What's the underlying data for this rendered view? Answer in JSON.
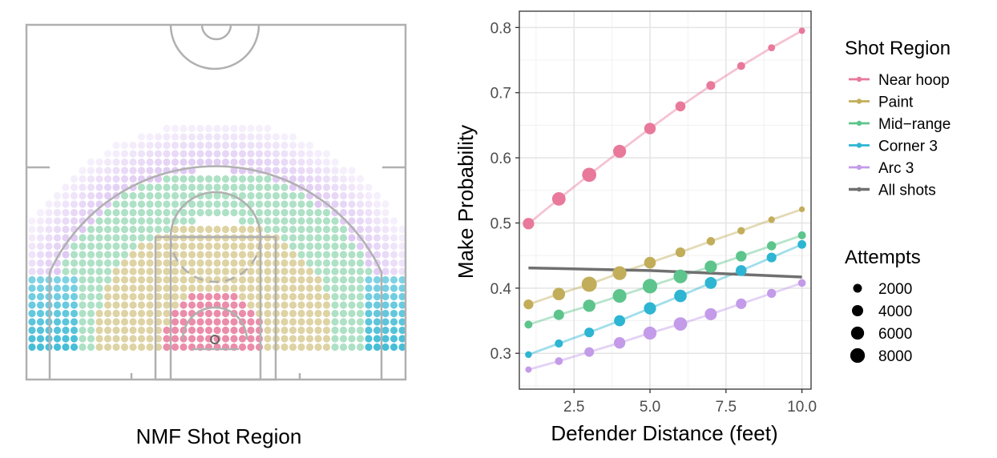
{
  "court_panel": {
    "title": "NMF Shot Region"
  },
  "colors": {
    "near_hoop": "#e8799b",
    "paint": "#c2ae5a",
    "mid_range": "#5dc48c",
    "corner_3": "#2db5d2",
    "arc_3": "#c39be8",
    "all_shots": "#707070",
    "court_lines": "#b0b0b0"
  },
  "chart_data": {
    "type": "line",
    "title": "",
    "xlabel": "Defender Distance (feet)",
    "ylabel": "Make Probability",
    "xlim": [
      0.7,
      10.3
    ],
    "ylim": [
      0.245,
      0.825
    ],
    "xticks": [
      2.5,
      5.0,
      7.5,
      10.0
    ],
    "xtick_labels": [
      "2.5",
      "5.0",
      "7.5",
      "10.0"
    ],
    "yticks": [
      0.3,
      0.4,
      0.5,
      0.6,
      0.7,
      0.8
    ],
    "ytick_labels": [
      "0.3",
      "0.4",
      "0.5",
      "0.6",
      "0.7",
      "0.8"
    ],
    "grid": true,
    "x": [
      1,
      2,
      3,
      4,
      5,
      6,
      7,
      8,
      9,
      10
    ],
    "series": [
      {
        "name": "Near hoop",
        "color_key": "near_hoop",
        "values": [
          0.499,
          0.537,
          0.574,
          0.61,
          0.645,
          0.679,
          0.711,
          0.741,
          0.769,
          0.795
        ],
        "attempts": [
          4200,
          6500,
          7400,
          6000,
          4300,
          3000,
          2100,
          1500,
          1000,
          700
        ]
      },
      {
        "name": "Paint",
        "color_key": "paint",
        "values": [
          0.375,
          0.391,
          0.406,
          0.423,
          0.439,
          0.455,
          0.472,
          0.488,
          0.505,
          0.521
        ],
        "attempts": [
          2800,
          5300,
          8800,
          6900,
          4500,
          2800,
          1800,
          1200,
          800,
          500
        ]
      },
      {
        "name": "Mid-range",
        "color_key": "mid_range",
        "values": [
          0.344,
          0.359,
          0.373,
          0.388,
          0.403,
          0.418,
          0.433,
          0.449,
          0.465,
          0.481
        ],
        "attempts": [
          1500,
          3300,
          5200,
          6800,
          7900,
          6800,
          5100,
          3500,
          2300,
          1500
        ]
      },
      {
        "name": "Corner 3",
        "color_key": "corner_3",
        "values": [
          0.298,
          0.315,
          0.332,
          0.35,
          0.369,
          0.388,
          0.408,
          0.427,
          0.447,
          0.467
        ],
        "attempts": [
          900,
          1600,
          2700,
          3900,
          5000,
          5400,
          4700,
          3700,
          2700,
          1900
        ]
      },
      {
        "name": "Arc 3",
        "color_key": "arc_3",
        "values": [
          0.275,
          0.288,
          0.302,
          0.316,
          0.331,
          0.345,
          0.36,
          0.376,
          0.392,
          0.408
        ],
        "attempts": [
          700,
          1400,
          2600,
          4300,
          6000,
          6400,
          4900,
          3400,
          2200,
          1400
        ]
      },
      {
        "name": "All shots",
        "color_key": "all_shots",
        "values": [
          0.431,
          0.43,
          0.429,
          0.428,
          0.427,
          0.425,
          0.423,
          0.421,
          0.419,
          0.417
        ],
        "line_only": true
      }
    ],
    "legend_region": {
      "title": "Shot Region",
      "position": "right",
      "entries": [
        "Near hoop",
        "Paint",
        "Mid−range",
        "Corner 3",
        "Arc 3",
        "All shots"
      ]
    },
    "legend_size": {
      "title": "Attempts",
      "position": "right",
      "values": [
        2000,
        4000,
        6000,
        8000
      ],
      "labels": [
        "2000",
        "4000",
        "6000",
        "8000"
      ]
    }
  }
}
